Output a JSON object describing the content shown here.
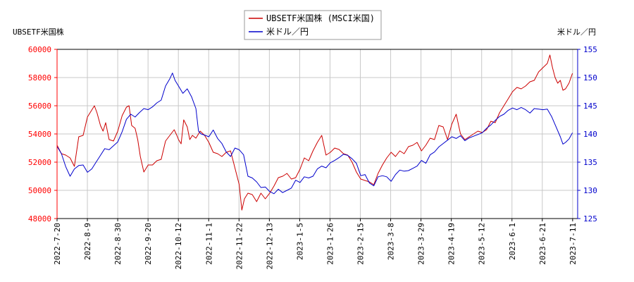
{
  "chart_data": {
    "type": "line",
    "y_left_title": "UBSETF米国株",
    "y_right_title": "米ドル／円",
    "ylim_left": [
      48000,
      60000
    ],
    "ylim_right": [
      125,
      155
    ],
    "yticks_left": [
      "48000",
      "50000",
      "52000",
      "54000",
      "56000",
      "58000",
      "60000"
    ],
    "yticks_right": [
      "125",
      "130",
      "135",
      "140",
      "145",
      "150",
      "155"
    ],
    "xticks": [
      "2022-7-20",
      "2022-8-9",
      "2022-8-30",
      "2022-9-20",
      "2022-10-12",
      "2022-11-1",
      "2022-11-22",
      "2022-12-13",
      "2023-1-5",
      "2023-1-26",
      "2023-2-15",
      "2023-3-8",
      "2023-3-29",
      "2023-4-19",
      "2023-5-12",
      "2023-6-1",
      "2023-6-21",
      "2023-7-11"
    ],
    "legend_position": "top-center",
    "colors": {
      "left_axis": "#ff0000",
      "right_axis": "#0000cc",
      "grid": "#c8c8c8"
    },
    "series": [
      {
        "name": "UBSETF米国株 (MSCI米国)",
        "axis": "left",
        "color": "#cc0000",
        "values": [
          [
            0,
            53200
          ],
          [
            0.5,
            52600
          ],
          [
            1,
            52500
          ],
          [
            1.5,
            52300
          ],
          [
            2,
            51700
          ],
          [
            2.5,
            53800
          ],
          [
            3,
            53900
          ],
          [
            3.5,
            55200
          ],
          [
            4,
            55700
          ],
          [
            4.3,
            56000
          ],
          [
            4.6,
            55500
          ],
          [
            5,
            54600
          ],
          [
            5.3,
            54200
          ],
          [
            5.6,
            54800
          ],
          [
            6,
            53600
          ],
          [
            6.5,
            53500
          ],
          [
            7,
            54200
          ],
          [
            7.5,
            55300
          ],
          [
            8,
            55900
          ],
          [
            8.3,
            56000
          ],
          [
            8.6,
            54600
          ],
          [
            9,
            54400
          ],
          [
            9.3,
            53600
          ],
          [
            9.6,
            52400
          ],
          [
            10,
            51300
          ],
          [
            10.5,
            51800
          ],
          [
            11,
            51800
          ],
          [
            11.5,
            52100
          ],
          [
            12,
            52200
          ],
          [
            12.5,
            53500
          ],
          [
            13,
            53900
          ],
          [
            13.5,
            54300
          ],
          [
            13.8,
            53900
          ],
          [
            14,
            53600
          ],
          [
            14.3,
            53300
          ],
          [
            14.6,
            55000
          ],
          [
            15,
            54500
          ],
          [
            15.3,
            53600
          ],
          [
            15.6,
            53900
          ],
          [
            16,
            53700
          ],
          [
            16.5,
            54200
          ],
          [
            17,
            53900
          ],
          [
            17.5,
            53400
          ],
          [
            18,
            52700
          ],
          [
            18.5,
            52600
          ],
          [
            19,
            52400
          ],
          [
            19.5,
            52700
          ],
          [
            20,
            52800
          ],
          [
            21,
            50400
          ],
          [
            21.3,
            48600
          ],
          [
            21.6,
            49400
          ],
          [
            22,
            49800
          ],
          [
            22.5,
            49700
          ],
          [
            23,
            49200
          ],
          [
            23.5,
            49800
          ],
          [
            24,
            49400
          ],
          [
            24.5,
            49800
          ],
          [
            25,
            50300
          ],
          [
            25.5,
            50900
          ],
          [
            26,
            51000
          ],
          [
            26.5,
            51200
          ],
          [
            27,
            50800
          ],
          [
            27.5,
            50900
          ],
          [
            28,
            51500
          ],
          [
            28.5,
            52300
          ],
          [
            29,
            52100
          ],
          [
            29.5,
            52800
          ],
          [
            30,
            53400
          ],
          [
            30.5,
            53900
          ],
          [
            31,
            52500
          ],
          [
            31.5,
            52700
          ],
          [
            32,
            53000
          ],
          [
            32.5,
            52900
          ],
          [
            33,
            52600
          ],
          [
            33.5,
            52500
          ],
          [
            34,
            52000
          ],
          [
            34.5,
            51300
          ],
          [
            35,
            50800
          ],
          [
            35.5,
            50700
          ],
          [
            36,
            50600
          ],
          [
            36.5,
            50400
          ],
          [
            37,
            51200
          ],
          [
            37.5,
            51800
          ],
          [
            38,
            52300
          ],
          [
            38.5,
            52700
          ],
          [
            39,
            52400
          ],
          [
            39.5,
            52800
          ],
          [
            40,
            52600
          ],
          [
            40.5,
            53100
          ],
          [
            41,
            53200
          ],
          [
            41.5,
            53400
          ],
          [
            42,
            52800
          ],
          [
            42.5,
            53200
          ],
          [
            43,
            53700
          ],
          [
            43.5,
            53600
          ],
          [
            44,
            54600
          ],
          [
            44.5,
            54500
          ],
          [
            45,
            53600
          ],
          [
            45.5,
            54700
          ],
          [
            46,
            55400
          ],
          [
            46.5,
            54000
          ],
          [
            47,
            53600
          ],
          [
            47.5,
            53800
          ],
          [
            48,
            54000
          ],
          [
            48.5,
            54200
          ],
          [
            49,
            54100
          ],
          [
            49.5,
            54300
          ],
          [
            50,
            54900
          ],
          [
            50.5,
            54800
          ],
          [
            51,
            55500
          ],
          [
            51.5,
            56000
          ],
          [
            52,
            56500
          ],
          [
            52.5,
            57000
          ],
          [
            53,
            57300
          ],
          [
            53.5,
            57200
          ],
          [
            54,
            57400
          ],
          [
            54.5,
            57700
          ],
          [
            55,
            57800
          ],
          [
            55.5,
            58400
          ],
          [
            56,
            58700
          ],
          [
            56.5,
            59000
          ],
          [
            56.8,
            59600
          ],
          [
            57.1,
            58700
          ],
          [
            57.4,
            58000
          ],
          [
            57.7,
            57600
          ],
          [
            58,
            57800
          ],
          [
            58.3,
            57100
          ],
          [
            58.6,
            57200
          ],
          [
            59,
            57600
          ],
          [
            59.4,
            58300
          ]
        ]
      },
      {
        "name": "米ドル／円",
        "axis": "right",
        "color": "#0000cc",
        "values": [
          [
            0,
            137.8
          ],
          [
            0.5,
            136.5
          ],
          [
            1,
            134.2
          ],
          [
            1.5,
            132.5
          ],
          [
            2,
            133.8
          ],
          [
            2.5,
            134.4
          ],
          [
            3,
            134.5
          ],
          [
            3.5,
            133.2
          ],
          [
            4,
            133.8
          ],
          [
            4.5,
            135.0
          ],
          [
            5,
            136.2
          ],
          [
            5.5,
            137.4
          ],
          [
            6,
            137.2
          ],
          [
            6.5,
            137.9
          ],
          [
            7,
            138.6
          ],
          [
            7.5,
            140.4
          ],
          [
            8,
            142.6
          ],
          [
            8.5,
            143.5
          ],
          [
            9,
            143.0
          ],
          [
            9.5,
            143.8
          ],
          [
            10,
            144.5
          ],
          [
            10.5,
            144.3
          ],
          [
            11,
            144.8
          ],
          [
            11.5,
            145.5
          ],
          [
            12,
            146.0
          ],
          [
            12.5,
            148.5
          ],
          [
            13,
            149.8
          ],
          [
            13.3,
            150.8
          ],
          [
            13.6,
            149.5
          ],
          [
            14,
            148.5
          ],
          [
            14.5,
            147.2
          ],
          [
            15,
            148.0
          ],
          [
            15.5,
            146.6
          ],
          [
            16,
            144.5
          ],
          [
            16.3,
            140.5
          ],
          [
            16.6,
            140.0
          ],
          [
            17,
            139.8
          ],
          [
            17.5,
            139.5
          ],
          [
            18,
            140.7
          ],
          [
            18.5,
            139.2
          ],
          [
            19,
            138.3
          ],
          [
            19.5,
            136.8
          ],
          [
            20,
            136.0
          ],
          [
            20.5,
            137.5
          ],
          [
            21,
            137.2
          ],
          [
            21.5,
            136.3
          ],
          [
            22,
            132.5
          ],
          [
            22.5,
            132.2
          ],
          [
            23,
            131.5
          ],
          [
            23.5,
            130.5
          ],
          [
            24,
            130.6
          ],
          [
            24.5,
            129.8
          ],
          [
            25,
            129.4
          ],
          [
            25.5,
            130.2
          ],
          [
            26,
            129.6
          ],
          [
            26.5,
            130.0
          ],
          [
            27,
            130.4
          ],
          [
            27.5,
            131.8
          ],
          [
            28,
            131.4
          ],
          [
            28.5,
            132.4
          ],
          [
            29,
            132.2
          ],
          [
            29.5,
            132.5
          ],
          [
            30,
            133.8
          ],
          [
            30.5,
            134.3
          ],
          [
            31,
            134.0
          ],
          [
            31.5,
            134.9
          ],
          [
            32,
            135.3
          ],
          [
            32.5,
            135.8
          ],
          [
            33,
            136.4
          ],
          [
            33.5,
            136.2
          ],
          [
            34,
            135.6
          ],
          [
            34.5,
            134.8
          ],
          [
            35,
            132.6
          ],
          [
            35.5,
            132.8
          ],
          [
            36,
            131.3
          ],
          [
            36.5,
            130.8
          ],
          [
            37,
            132.4
          ],
          [
            37.5,
            132.6
          ],
          [
            38,
            132.4
          ],
          [
            38.5,
            131.6
          ],
          [
            39,
            132.8
          ],
          [
            39.5,
            133.6
          ],
          [
            40,
            133.4
          ],
          [
            40.5,
            133.5
          ],
          [
            41,
            133.9
          ],
          [
            41.5,
            134.3
          ],
          [
            42,
            135.3
          ],
          [
            42.5,
            134.8
          ],
          [
            43,
            136.3
          ],
          [
            43.5,
            136.8
          ],
          [
            44,
            137.7
          ],
          [
            44.5,
            138.3
          ],
          [
            45,
            138.9
          ],
          [
            45.5,
            139.5
          ],
          [
            46,
            139.2
          ],
          [
            46.5,
            139.7
          ],
          [
            47,
            138.8
          ],
          [
            47.5,
            139.3
          ],
          [
            48,
            139.6
          ],
          [
            48.5,
            139.9
          ],
          [
            49,
            140.2
          ],
          [
            49.5,
            141.0
          ],
          [
            50,
            141.6
          ],
          [
            50.5,
            142.4
          ],
          [
            51,
            143.1
          ],
          [
            51.5,
            143.5
          ],
          [
            52,
            144.2
          ],
          [
            52.5,
            144.6
          ],
          [
            53,
            144.3
          ],
          [
            53.5,
            144.7
          ],
          [
            54,
            144.3
          ],
          [
            54.5,
            143.7
          ],
          [
            55,
            144.5
          ],
          [
            55.5,
            144.4
          ],
          [
            56,
            144.3
          ],
          [
            56.5,
            144.4
          ],
          [
            57,
            143.1
          ],
          [
            57.5,
            141.3
          ],
          [
            58,
            139.5
          ],
          [
            58.3,
            138.2
          ],
          [
            58.6,
            138.5
          ],
          [
            59,
            139.1
          ],
          [
            59.4,
            140.2
          ]
        ]
      }
    ]
  }
}
